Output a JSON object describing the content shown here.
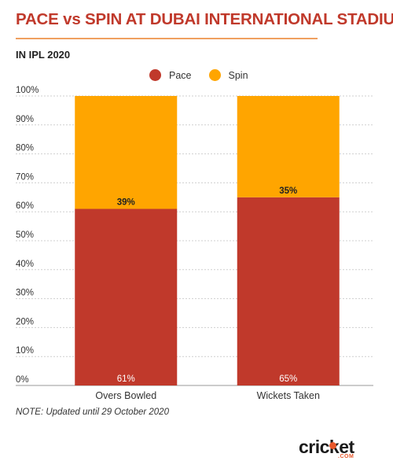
{
  "header": {
    "title": "PACE vs SPIN AT DUBAI INTERNATIONAL STADIUM",
    "subtitle": "IN IPL 2020"
  },
  "note": "NOTE: Updated until 29 October 2020",
  "brand": {
    "name": "cricket",
    "suffix": ".COM",
    "accent_color": "#e8572a"
  },
  "chart_data": {
    "type": "bar",
    "stacked": true,
    "categories": [
      "Overs Bowled",
      "Wickets Taken"
    ],
    "series": [
      {
        "name": "Pace",
        "values": [
          61,
          65
        ],
        "labels": [
          "61%",
          "65%"
        ],
        "color": "#c0392b"
      },
      {
        "name": "Spin",
        "values": [
          39,
          35
        ],
        "labels": [
          "39%",
          "35%"
        ],
        "color": "#ffa500"
      }
    ],
    "ylim": [
      0,
      100
    ],
    "yticks": [
      0,
      10,
      20,
      30,
      40,
      50,
      60,
      70,
      80,
      90,
      100
    ],
    "ytick_labels": [
      "0%",
      "10%",
      "20%",
      "30%",
      "40%",
      "50%",
      "60%",
      "70%",
      "80%",
      "90%",
      "100%"
    ],
    "grid": true,
    "legend_position": "top-center"
  }
}
